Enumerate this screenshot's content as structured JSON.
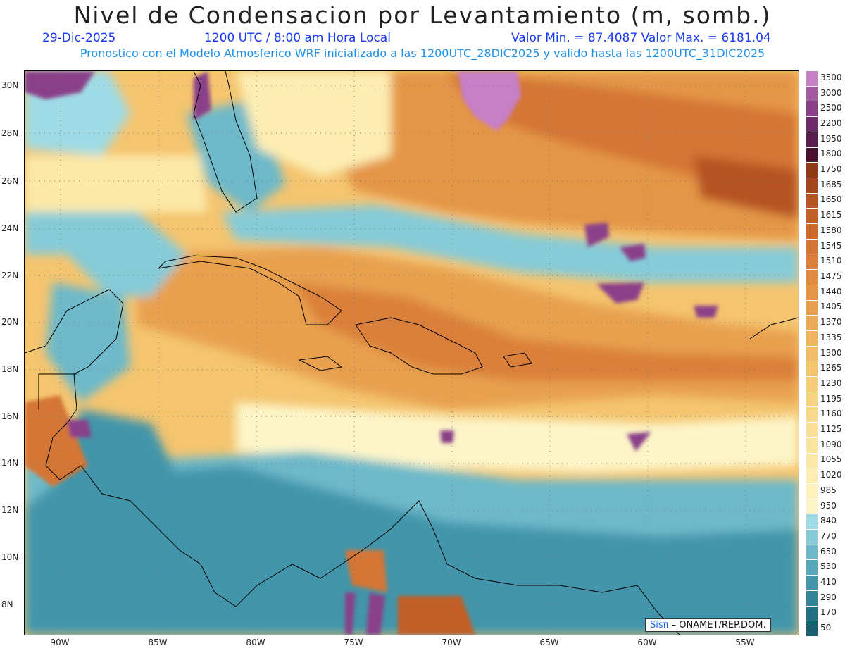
{
  "header": {
    "title": "Nivel de Condensacion por Levantamiento (m, somb.)",
    "date": "29-Dic-2025",
    "time": "1200 UTC / 8:00 am Hora Local",
    "minmax": "Valor Min. = 87.4087  Valor Max. = 6181.04",
    "model_info": "Pronostico con el Modelo Atmosferico WRF inicializado a las 1200UTC_28DIC2025 y valido hasta las  1200UTC_31DIC2025"
  },
  "axes": {
    "lat_labels": [
      "30N",
      "28N",
      "26N",
      "24N",
      "22N",
      "20N",
      "18N",
      "16N",
      "14N",
      "12N",
      "10N",
      "8N"
    ],
    "lon_labels": [
      "90W",
      "85W",
      "80W",
      "75W",
      "70W",
      "65W",
      "60W",
      "55W"
    ]
  },
  "colorbar": {
    "labels": [
      "3500",
      "3000",
      "2500",
      "2200",
      "1950",
      "1800",
      "1750",
      "1685",
      "1650",
      "1615",
      "1580",
      "1545",
      "1510",
      "1475",
      "1440",
      "1405",
      "1370",
      "1335",
      "1300",
      "1265",
      "1230",
      "1195",
      "1160",
      "1125",
      "1090",
      "1055",
      "1020",
      "985",
      "950",
      "840",
      "770",
      "650",
      "530",
      "410",
      "290",
      "170",
      "50"
    ],
    "colors": [
      "#c77fc6",
      "#a35aa3",
      "#8a3f88",
      "#6f2a6c",
      "#5a1b4e",
      "#4a1030",
      "#8f3a16",
      "#a3481c",
      "#b55322",
      "#c25e28",
      "#cc6a2e",
      "#d47634",
      "#da803a",
      "#e08b40",
      "#e49646",
      "#e8a04e",
      "#ecaa56",
      "#efb35e",
      "#f2bc66",
      "#f4c46f",
      "#f6cc78",
      "#f8d381",
      "#f9d98a",
      "#fadf94",
      "#fbe49e",
      "#fce9a8",
      "#fdedb2",
      "#fef1bc",
      "#fdf5c8",
      "#9fdbe6",
      "#86cbd8",
      "#6db9c9",
      "#56a7ba",
      "#4395aa",
      "#318398",
      "#237185",
      "#17606f"
    ]
  },
  "credit": {
    "brand": "Sisπ",
    "text": " – ONAMET/REP.DOM."
  }
}
